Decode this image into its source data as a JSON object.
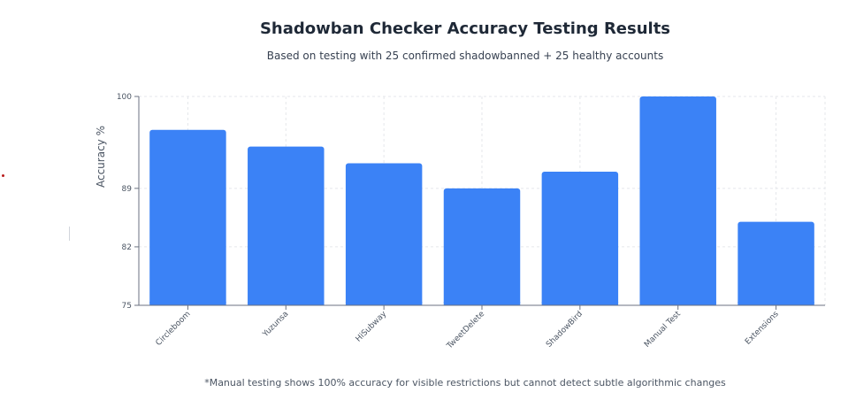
{
  "title": "Shadowban Checker Accuracy Testing Results",
  "subtitle": "Based on testing with 25 confirmed shadowbanned + 25 healthy accounts",
  "footnote": "*Manual testing shows 100% accuracy for visible restrictions but cannot detect subtle algorithmic changes",
  "colors": {
    "bar": "#3b82f6",
    "grid": "#e5e7eb",
    "axis": "#6b7280"
  },
  "chart_data": {
    "type": "bar",
    "title": "Shadowban Checker Accuracy Testing Results",
    "subtitle": "Based on testing with 25 confirmed shadowbanned + 25 healthy accounts",
    "xlabel": "",
    "ylabel": "Accuracy %",
    "categories": [
      "Circleboom",
      "Yuzunsa",
      "HiSubway",
      "TweetDelete",
      "ShadowBird",
      "Manual Test",
      "Extensions"
    ],
    "values": [
      96,
      94,
      92,
      89,
      91,
      100,
      85
    ],
    "ylim": [
      75,
      100
    ],
    "yticks": [
      75,
      82,
      89,
      100
    ],
    "grid": true,
    "legend": "none"
  }
}
